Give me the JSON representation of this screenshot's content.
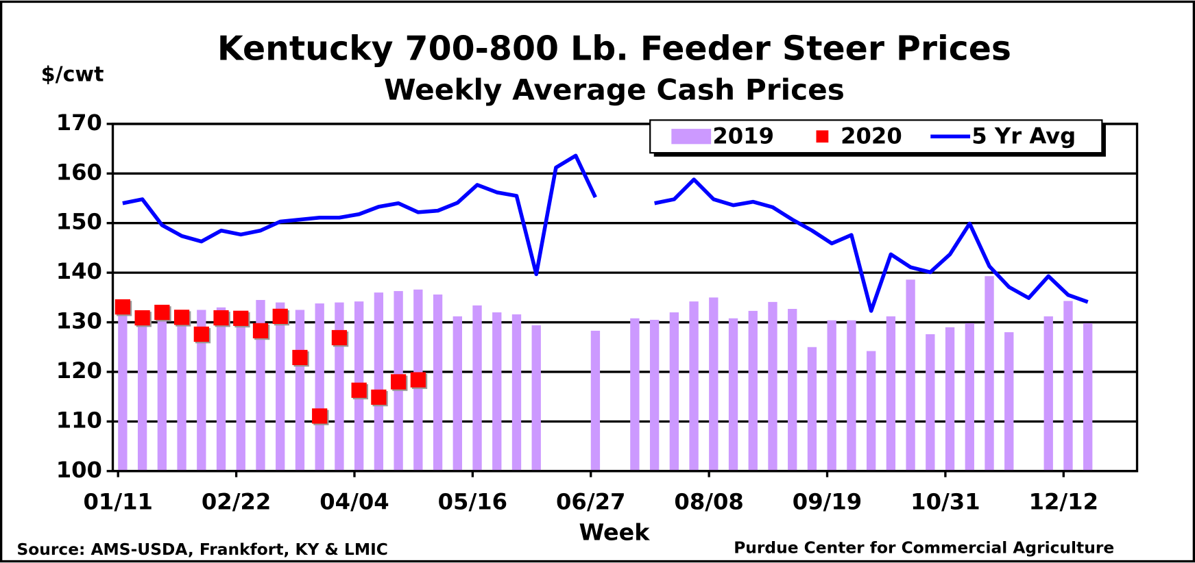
{
  "chart_data": {
    "type": "bar",
    "title": "Kentucky 700-800 Lb. Feeder Steer Prices",
    "subtitle": "Weekly Average Cash Prices",
    "y_label": "$/cwt",
    "x_label": "Week",
    "source": "Source:  AMS-USDA, Frankfort, KY & LMIC",
    "credit": "Purdue Center for Commercial Agriculture",
    "categories": [
      "01/11",
      null,
      null,
      null,
      null,
      null,
      "02/22",
      null,
      null,
      null,
      null,
      null,
      "04/04",
      null,
      null,
      null,
      null,
      null,
      "05/16",
      null,
      null,
      null,
      null,
      null,
      "06/27",
      null,
      null,
      null,
      null,
      null,
      "08/08",
      null,
      null,
      null,
      null,
      null,
      "09/19",
      null,
      null,
      null,
      null,
      null,
      "10/31",
      null,
      null,
      null,
      null,
      null,
      "12/12",
      null,
      null,
      null
    ],
    "series": [
      {
        "name": "2019",
        "type": "bar",
        "color": "#cc99ff",
        "values": [
          132,
          131,
          131,
          131,
          132.5,
          133,
          131,
          134.5,
          134,
          132.5,
          133.8,
          134,
          134.2,
          136,
          136.3,
          136.6,
          135.6,
          131.2,
          133.4,
          132,
          131.6,
          129.4,
          null,
          null,
          128.3,
          null,
          130.8,
          130.5,
          132,
          134.2,
          135,
          130.8,
          132.3,
          134.1,
          132.7,
          125,
          130.4,
          130.4,
          124.2,
          131.2,
          138.6,
          127.6,
          129,
          129.8,
          139.3,
          128,
          null,
          131.2,
          134.3,
          129.8,
          null,
          null
        ]
      },
      {
        "name": "2020",
        "type": "scatter",
        "color": "#ff0000",
        "values": [
          133.1,
          130.9,
          132,
          131,
          127.6,
          130.9,
          130.8,
          128.3,
          131.2,
          122.9,
          111.1,
          126.9,
          116.3,
          114.9,
          118,
          118.4,
          null,
          null,
          null,
          null,
          null,
          null,
          null,
          null,
          null,
          null,
          null,
          null,
          null,
          null,
          null,
          null,
          null,
          null,
          null,
          null,
          null,
          null,
          null,
          null,
          null,
          null,
          null,
          null,
          null,
          null,
          null,
          null,
          null,
          null,
          null,
          null
        ]
      },
      {
        "name": "5 Yr Avg",
        "type": "line",
        "color": "#0000ff",
        "values": [
          154,
          154.8,
          149.6,
          147.4,
          146.3,
          148.5,
          147.7,
          148.5,
          150.3,
          150.7,
          151.1,
          151.1,
          151.8,
          153.3,
          154,
          152.2,
          152.5,
          154.1,
          157.7,
          156.2,
          155.5,
          139.7,
          161.2,
          163.6,
          155.2,
          null,
          null,
          154,
          154.8,
          158.8,
          154.8,
          153.6,
          154.3,
          153.2,
          150.7,
          148.5,
          145.9,
          147.6,
          132.3,
          143.7,
          141.1,
          140.1,
          143.7,
          149.9,
          141.3,
          137.1,
          134.9,
          139.3,
          135.5,
          134.1,
          null,
          null
        ]
      }
    ],
    "ylim": [
      100,
      170
    ],
    "yticks": [
      100,
      110,
      120,
      130,
      140,
      150,
      160,
      170
    ],
    "grid": true,
    "legend": "top-right"
  }
}
